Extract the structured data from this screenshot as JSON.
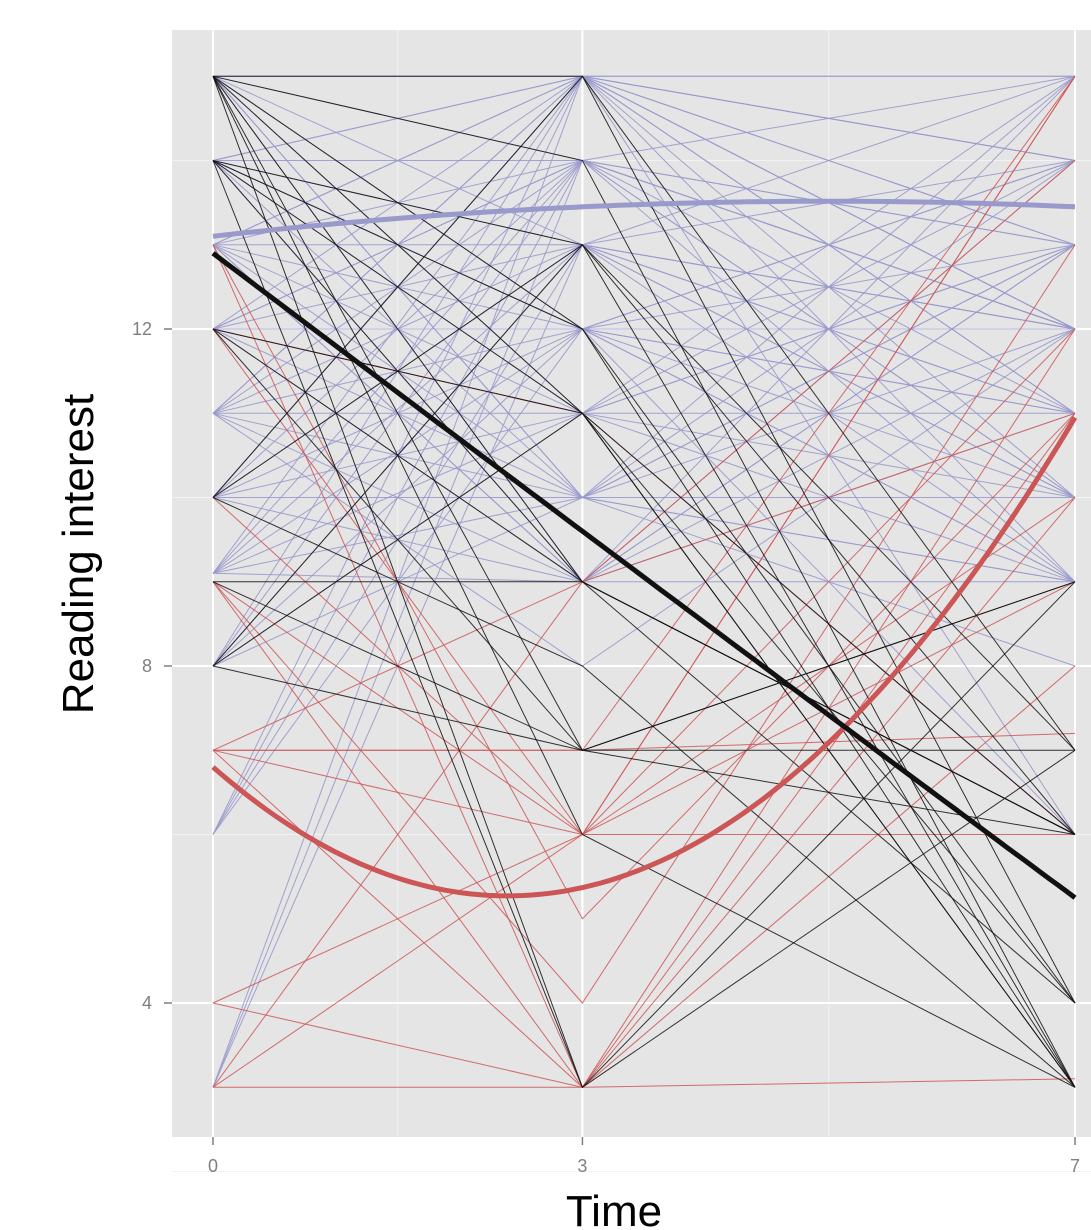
{
  "chart_data": {
    "type": "line",
    "xlabel": "Time",
    "ylabel": "Reading interest",
    "x_ticks": [
      0,
      3,
      7
    ],
    "y_ticks": [
      4,
      8,
      12
    ],
    "xlim": [
      -0.35,
      7.0
    ],
    "ylim": [
      2.5,
      15.6
    ],
    "grid": true,
    "background": "#e5e5e5",
    "group_colors": {
      "blue": "#9999cc",
      "red": "#cc5555",
      "black": "#111111"
    },
    "x": [
      0,
      3,
      7
    ],
    "individual_trajectories": {
      "blue": [
        [
          15,
          15,
          15
        ],
        [
          15,
          14,
          12
        ],
        [
          15,
          13,
          10
        ],
        [
          15,
          12,
          9
        ],
        [
          15,
          11,
          11
        ],
        [
          15,
          10,
          13
        ],
        [
          15,
          9,
          14
        ],
        [
          15,
          15,
          12
        ],
        [
          14,
          15,
          14
        ],
        [
          14,
          14,
          15
        ],
        [
          14,
          13,
          9
        ],
        [
          14,
          12,
          10
        ],
        [
          14,
          11,
          13
        ],
        [
          14,
          10,
          12
        ],
        [
          14,
          15,
          6
        ],
        [
          14,
          9,
          11
        ],
        [
          13,
          15,
          10
        ],
        [
          13,
          14,
          13
        ],
        [
          13,
          13,
          15
        ],
        [
          13,
          12,
          11
        ],
        [
          13,
          11,
          9
        ],
        [
          13,
          10,
          14
        ],
        [
          13,
          15,
          12
        ],
        [
          13,
          9,
          13
        ],
        [
          12,
          15,
          11
        ],
        [
          12,
          14,
          12
        ],
        [
          12,
          13,
          14
        ],
        [
          12,
          12,
          12
        ],
        [
          12,
          11,
          6
        ],
        [
          12,
          10,
          9
        ],
        [
          12,
          9,
          15
        ],
        [
          12,
          14,
          10
        ],
        [
          11,
          15,
          9
        ],
        [
          11,
          14,
          11
        ],
        [
          11,
          13,
          12
        ],
        [
          11,
          12,
          14
        ],
        [
          11,
          11,
          10
        ],
        [
          11,
          10,
          15
        ],
        [
          11,
          9,
          13
        ],
        [
          11,
          15,
          13
        ],
        [
          10,
          15,
          12
        ],
        [
          10,
          14,
          13
        ],
        [
          10,
          13,
          11
        ],
        [
          10,
          12,
          9
        ],
        [
          10,
          11,
          14
        ],
        [
          10,
          10,
          10
        ],
        [
          10,
          9,
          12
        ],
        [
          10,
          15,
          15
        ],
        [
          9.1,
          15,
          14
        ],
        [
          9.1,
          14,
          10
        ],
        [
          9.1,
          13,
          12
        ],
        [
          9.1,
          12,
          11
        ],
        [
          9.1,
          11,
          13
        ],
        [
          9.1,
          10,
          9
        ],
        [
          9.1,
          9,
          9
        ],
        [
          8,
          15,
          13
        ],
        [
          8,
          14,
          9
        ],
        [
          8,
          13,
          12
        ],
        [
          8,
          12,
          14
        ],
        [
          8,
          11,
          15
        ],
        [
          8,
          10,
          13
        ],
        [
          6,
          15,
          11
        ],
        [
          6,
          14,
          12
        ],
        [
          6,
          13,
          10
        ],
        [
          6,
          12,
          13
        ],
        [
          3,
          15,
          14
        ],
        [
          3,
          14,
          12
        ],
        [
          3,
          13,
          11
        ],
        [
          14,
          12,
          6
        ],
        [
          13,
          9,
          6
        ],
        [
          11,
          8,
          12
        ],
        [
          15,
          10,
          8
        ]
      ],
      "red": [
        [
          13,
          5,
          11
        ],
        [
          12,
          11,
          6
        ],
        [
          10,
          6,
          15
        ],
        [
          9,
          4,
          13
        ],
        [
          9,
          6,
          12
        ],
        [
          9,
          3,
          10
        ],
        [
          7,
          9,
          14
        ],
        [
          7,
          7,
          7.2
        ],
        [
          7,
          6,
          9
        ],
        [
          7,
          3,
          8
        ],
        [
          4,
          6,
          15
        ],
        [
          4,
          3,
          12
        ],
        [
          3,
          3,
          3.1
        ],
        [
          3,
          6,
          6
        ],
        [
          3,
          9,
          11
        ],
        [
          13,
          3,
          11
        ],
        [
          12,
          6,
          10
        ],
        [
          7,
          7,
          15
        ]
      ],
      "black": [
        [
          15,
          15,
          7
        ],
        [
          15,
          14,
          3
        ],
        [
          15,
          12,
          4
        ],
        [
          15,
          11,
          3
        ],
        [
          15,
          9,
          6
        ],
        [
          15,
          7,
          6
        ],
        [
          15,
          3,
          7
        ],
        [
          14,
          13,
          7
        ],
        [
          14,
          12,
          3
        ],
        [
          14,
          11,
          6
        ],
        [
          14,
          9,
          4
        ],
        [
          12,
          7,
          9
        ],
        [
          12,
          11,
          3
        ],
        [
          10,
          13,
          6
        ],
        [
          10,
          8,
          3
        ],
        [
          9,
          9,
          6
        ],
        [
          9,
          7,
          7
        ],
        [
          8,
          13,
          3
        ],
        [
          8,
          11,
          4
        ],
        [
          8,
          7,
          9
        ],
        [
          15,
          6,
          3
        ],
        [
          14,
          3,
          9
        ],
        [
          12,
          9,
          6
        ],
        [
          10,
          15,
          4
        ]
      ]
    },
    "fitted_curves": [
      {
        "group": "blue",
        "x": [
          0,
          3,
          7
        ],
        "y": [
          13.1,
          13.45,
          13.45
        ]
      },
      {
        "group": "red",
        "x": [
          0,
          3,
          7
        ],
        "y": [
          6.8,
          5.37,
          10.95
        ]
      },
      {
        "group": "black",
        "x": [
          0,
          3,
          7
        ],
        "y": [
          12.9,
          9.6,
          5.25
        ]
      }
    ]
  }
}
